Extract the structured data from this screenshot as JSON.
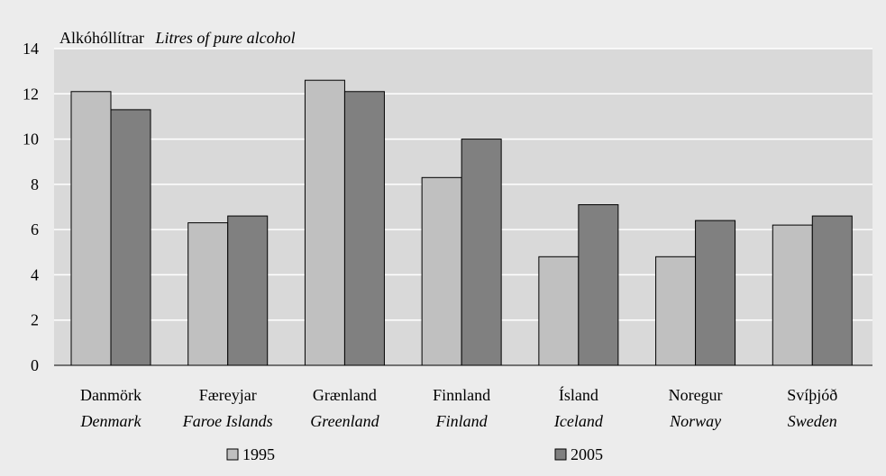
{
  "chart_data": {
    "type": "bar",
    "title": "",
    "ylabel_main": "Alkóhóllítrar",
    "ylabel_en": "Litres of pure alcohol",
    "xlabel": "",
    "ylim": [
      0,
      14
    ],
    "yticks": [
      "0",
      "2",
      "4",
      "6",
      "8",
      "10",
      "12",
      "14"
    ],
    "grid": true,
    "legend_position": "bottom",
    "categories": [
      {
        "label": "Danmörk",
        "label_en": "Denmark"
      },
      {
        "label": "Færeyjar",
        "label_en": "Faroe Islands"
      },
      {
        "label": "Grænland",
        "label_en": "Greenland"
      },
      {
        "label": "Finnland",
        "label_en": "Finland"
      },
      {
        "label": "Ísland",
        "label_en": "Iceland"
      },
      {
        "label": "Noregur",
        "label_en": "Norway"
      },
      {
        "label": "Svíþjóð",
        "label_en": "Sweden"
      }
    ],
    "series": [
      {
        "name": "1995",
        "color": "#c0c0c0",
        "values": [
          12.1,
          6.3,
          12.6,
          8.3,
          4.8,
          4.8,
          6.2
        ]
      },
      {
        "name": "2005",
        "color": "#808080",
        "values": [
          11.3,
          6.6,
          12.1,
          10.0,
          7.1,
          6.4,
          6.6
        ]
      }
    ],
    "plot_background": "#d9d9d9",
    "background": "#ececec"
  }
}
